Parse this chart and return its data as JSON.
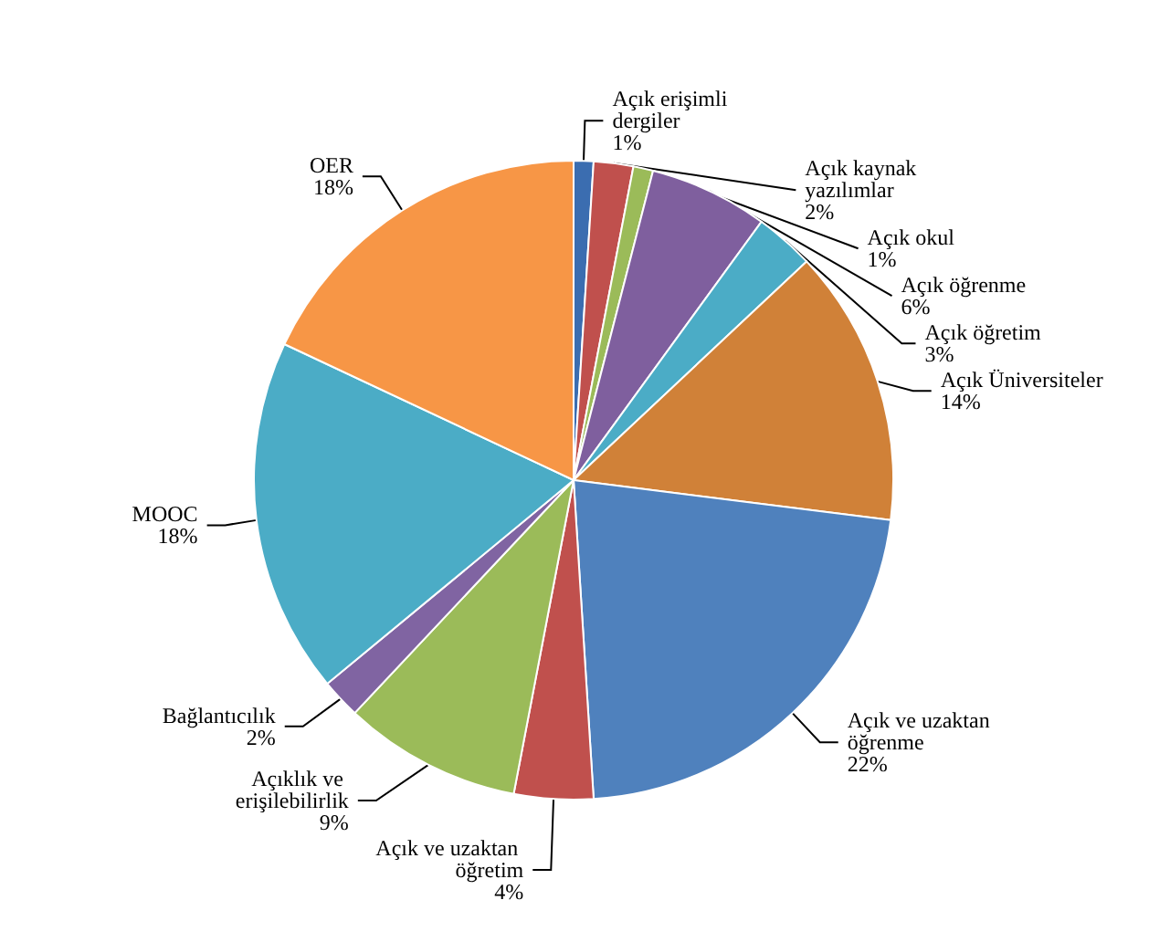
{
  "chart_data": {
    "type": "pie",
    "categories": [
      "Açık erişimli dergiler",
      "Açık kaynak yazılımlar",
      "Açık okul",
      "Açık öğrenme",
      "Açık öğretim",
      "Açık Üniversiteler",
      "Açık ve uzaktan öğrenme",
      "Açık ve uzaktan öğretim",
      "Açıklık ve erişilebilirlik",
      "Bağlantıcılık",
      "MOOC",
      "OER"
    ],
    "values": [
      1,
      2,
      1,
      6,
      3,
      14,
      22,
      4,
      9,
      2,
      18,
      18
    ],
    "value_labels": [
      "1%",
      "2%",
      "1%",
      "6%",
      "3%",
      "14%",
      "22%",
      "4%",
      "9%",
      "2%",
      "18%",
      "18%"
    ],
    "colors": [
      "#3b6db0",
      "#c0504d",
      "#9bbb59",
      "#7f5f9e",
      "#4bacc6",
      "#d08138",
      "#4f81bd",
      "#c0504d",
      "#9bbb59",
      "#8064a2",
      "#4bacc6",
      "#f79646"
    ],
    "legend": false
  }
}
